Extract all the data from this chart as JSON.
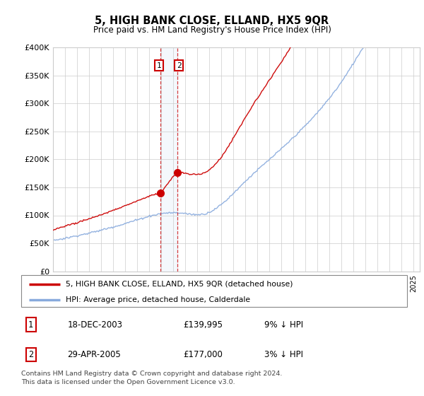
{
  "title": "5, HIGH BANK CLOSE, ELLAND, HX5 9QR",
  "subtitle": "Price paid vs. HM Land Registry's House Price Index (HPI)",
  "ylim": [
    0,
    400000
  ],
  "yticks": [
    0,
    50000,
    100000,
    150000,
    200000,
    250000,
    300000,
    350000,
    400000
  ],
  "ytick_labels": [
    "£0",
    "£50K",
    "£100K",
    "£150K",
    "£200K",
    "£250K",
    "£300K",
    "£350K",
    "£400K"
  ],
  "legend_line1": "5, HIGH BANK CLOSE, ELLAND, HX5 9QR (detached house)",
  "legend_line2": "HPI: Average price, detached house, Calderdale",
  "line1_color": "#cc0000",
  "line2_color": "#88aadd",
  "transaction1_year": 2003.96,
  "transaction1_price": 139995,
  "transaction2_year": 2005.32,
  "transaction2_price": 177000,
  "footer1": "Contains HM Land Registry data © Crown copyright and database right 2024.",
  "footer2": "This data is licensed under the Open Government Licence v3.0.",
  "table_row1": [
    "1",
    "18-DEC-2003",
    "£139,995",
    "9% ↓ HPI"
  ],
  "table_row2": [
    "2",
    "29-APR-2005",
    "£177,000",
    "3% ↓ HPI"
  ],
  "background_color": "#ffffff",
  "grid_color": "#cccccc",
  "xlim_left": 1995.0,
  "xlim_right": 2025.5
}
